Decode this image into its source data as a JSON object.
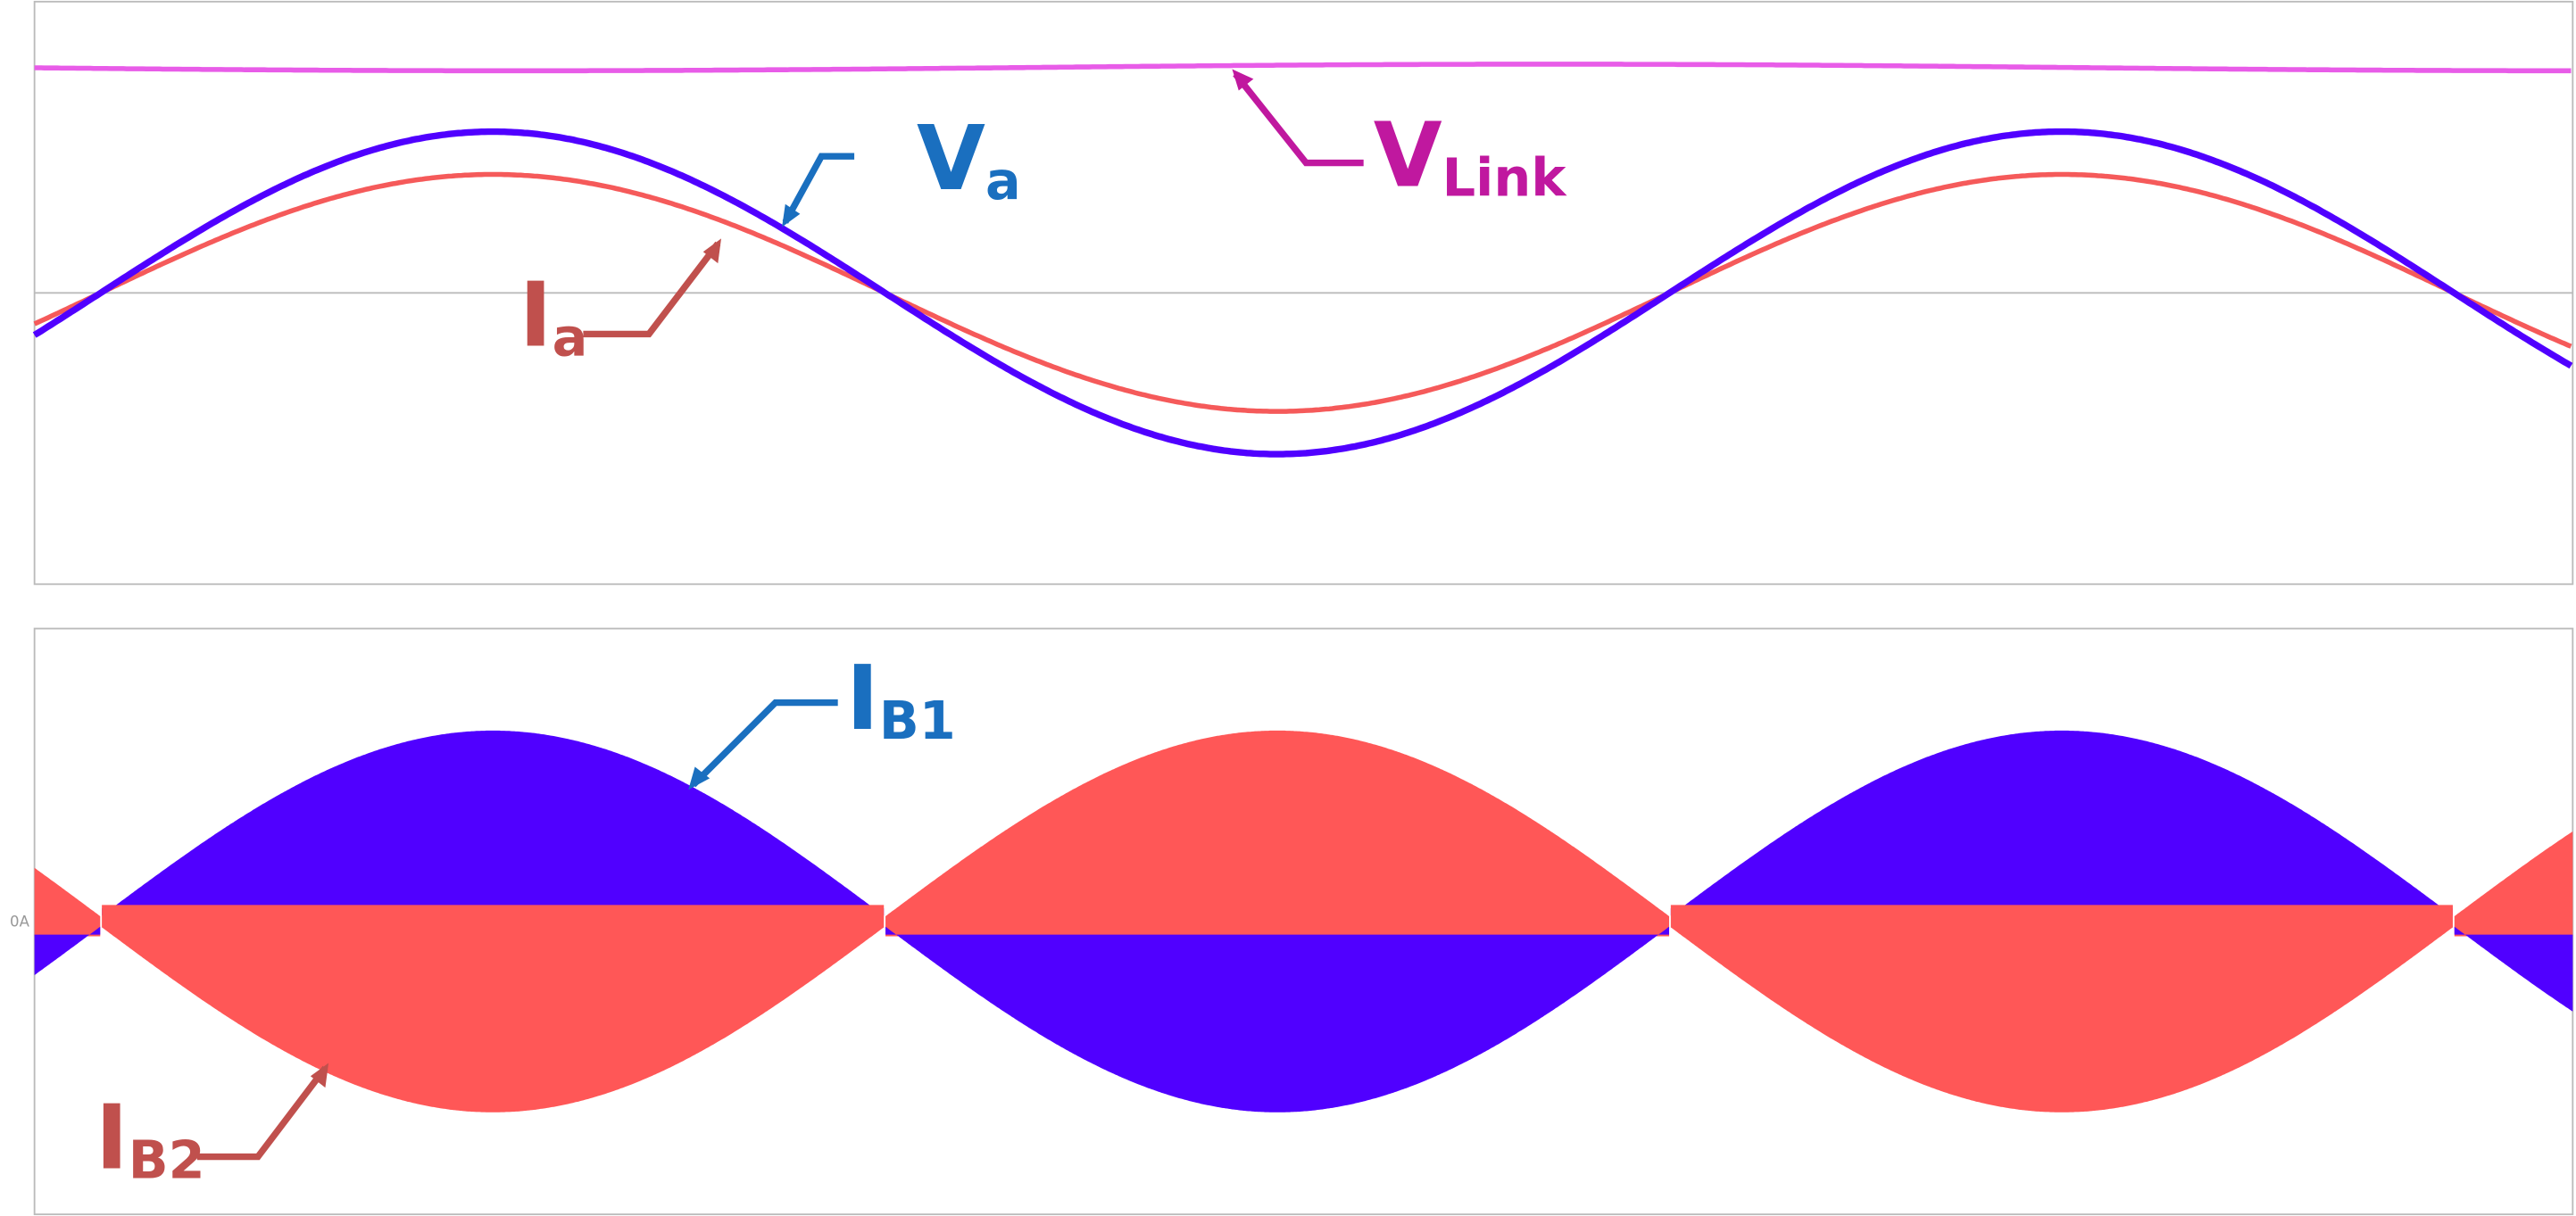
{
  "panels": [
    {
      "labels": [
        {
          "main": "V",
          "sub": "a"
        },
        {
          "main": "V",
          "sub": "Link"
        },
        {
          "main": "I",
          "sub": "a"
        }
      ]
    },
    {
      "zero_label": "0A",
      "labels": [
        {
          "main": "I",
          "sub": "B1"
        },
        {
          "main": "I",
          "sub": "B2"
        }
      ]
    }
  ]
}
